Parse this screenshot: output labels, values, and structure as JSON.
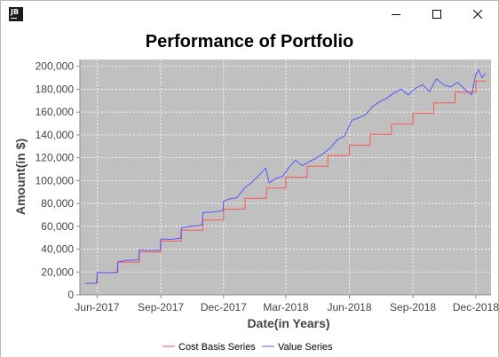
{
  "window": {
    "app_icon_text": "JB",
    "controls": [
      "minimize",
      "maximize",
      "close"
    ]
  },
  "chart_data": {
    "type": "line",
    "title": "Performance of Portfolio",
    "xlabel": "Date(in Years)",
    "ylabel": "Amount(in $)",
    "x_ticks": [
      "Jun-2017",
      "Sep-2017",
      "Dec-2017",
      "Mar-2018",
      "Jun-2018",
      "Sep-2018",
      "Dec-2018"
    ],
    "x_tick_dates": [
      "2017-06-01",
      "2017-09-01",
      "2017-12-01",
      "2018-03-01",
      "2018-06-01",
      "2018-09-01",
      "2018-12-01"
    ],
    "xlim": [
      "2017-05-07",
      "2018-12-23"
    ],
    "y_ticks": [
      0,
      20000,
      40000,
      60000,
      80000,
      100000,
      120000,
      140000,
      160000,
      180000,
      200000
    ],
    "y_tick_labels": [
      "0",
      "20,000",
      "40,000",
      "60,000",
      "80,000",
      "100,000",
      "120,000",
      "140,000",
      "160,000",
      "180,000",
      "200,000"
    ],
    "ylim": [
      0,
      206000
    ],
    "grid": true,
    "background_color": "#c0c0c0",
    "grid_color": "#ffffff",
    "legend_position": "bottom",
    "series": [
      {
        "name": "Cost Basis Series",
        "color": "#ff5555",
        "step": true,
        "points": [
          [
            "2017-05-15",
            10000
          ],
          [
            "2017-06-01",
            19500
          ],
          [
            "2017-07-01",
            28500
          ],
          [
            "2017-08-01",
            37500
          ],
          [
            "2017-09-01",
            47000
          ],
          [
            "2017-10-01",
            56500
          ],
          [
            "2017-11-01",
            65500
          ],
          [
            "2017-12-01",
            75000
          ],
          [
            "2018-01-01",
            84500
          ],
          [
            "2018-02-01",
            93500
          ],
          [
            "2018-03-01",
            103000
          ],
          [
            "2018-04-01",
            112500
          ],
          [
            "2018-05-01",
            122000
          ],
          [
            "2018-06-01",
            131000
          ],
          [
            "2018-07-01",
            140500
          ],
          [
            "2018-08-01",
            149500
          ],
          [
            "2018-09-01",
            159000
          ],
          [
            "2018-10-01",
            168000
          ],
          [
            "2018-11-01",
            177500
          ],
          [
            "2018-12-01",
            187000
          ],
          [
            "2018-12-15",
            187000
          ]
        ]
      },
      {
        "name": "Value Series",
        "color": "#5555ff",
        "step": false,
        "points": [
          [
            "2017-05-15",
            10000
          ],
          [
            "2017-05-31",
            10200
          ],
          [
            "2017-06-01",
            19600
          ],
          [
            "2017-06-15",
            19300
          ],
          [
            "2017-06-30",
            19800
          ],
          [
            "2017-07-01",
            29000
          ],
          [
            "2017-07-15",
            30200
          ],
          [
            "2017-07-31",
            30500
          ],
          [
            "2017-08-01",
            39500
          ],
          [
            "2017-08-15",
            38800
          ],
          [
            "2017-08-31",
            39200
          ],
          [
            "2017-09-01",
            49000
          ],
          [
            "2017-09-15",
            48500
          ],
          [
            "2017-09-30",
            49500
          ],
          [
            "2017-10-01",
            58500
          ],
          [
            "2017-10-15",
            60000
          ],
          [
            "2017-10-31",
            61000
          ],
          [
            "2017-11-01",
            72000
          ],
          [
            "2017-11-15",
            72500
          ],
          [
            "2017-11-30",
            73500
          ],
          [
            "2017-12-01",
            82000
          ],
          [
            "2017-12-10",
            84000
          ],
          [
            "2017-12-20",
            85000
          ],
          [
            "2018-01-01",
            94000
          ],
          [
            "2018-01-10",
            98000
          ],
          [
            "2018-01-20",
            104000
          ],
          [
            "2018-01-31",
            111000
          ],
          [
            "2018-02-05",
            98000
          ],
          [
            "2018-02-15",
            102000
          ],
          [
            "2018-02-25",
            104000
          ],
          [
            "2018-03-05",
            111000
          ],
          [
            "2018-03-15",
            118000
          ],
          [
            "2018-03-25",
            113000
          ],
          [
            "2018-04-05",
            117000
          ],
          [
            "2018-04-15",
            120000
          ],
          [
            "2018-04-25",
            124000
          ],
          [
            "2018-05-05",
            129000
          ],
          [
            "2018-05-15",
            136000
          ],
          [
            "2018-05-25",
            139000
          ],
          [
            "2018-06-05",
            153000
          ],
          [
            "2018-06-15",
            155000
          ],
          [
            "2018-06-25",
            158000
          ],
          [
            "2018-07-05",
            165000
          ],
          [
            "2018-07-15",
            169000
          ],
          [
            "2018-07-25",
            172000
          ],
          [
            "2018-08-05",
            177000
          ],
          [
            "2018-08-15",
            180000
          ],
          [
            "2018-08-25",
            175000
          ],
          [
            "2018-09-05",
            181000
          ],
          [
            "2018-09-15",
            184000
          ],
          [
            "2018-09-25",
            178000
          ],
          [
            "2018-10-05",
            189000
          ],
          [
            "2018-10-15",
            184000
          ],
          [
            "2018-10-25",
            182000
          ],
          [
            "2018-11-05",
            186000
          ],
          [
            "2018-11-15",
            180000
          ],
          [
            "2018-11-25",
            175000
          ],
          [
            "2018-12-01",
            193000
          ],
          [
            "2018-12-05",
            197000
          ],
          [
            "2018-12-10",
            190000
          ],
          [
            "2018-12-15",
            194000
          ]
        ]
      }
    ]
  }
}
